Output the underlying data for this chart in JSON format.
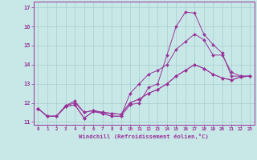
{
  "xlabel": "Windchill (Refroidissement éolien,°C)",
  "background_color": "#c8e8e8",
  "line_color": "#993399",
  "grid_color": "#a8cccc",
  "xlim": [
    -0.5,
    23.5
  ],
  "ylim": [
    10.85,
    17.3
  ],
  "yticks": [
    11,
    12,
    13,
    14,
    15,
    16,
    17
  ],
  "xticks": [
    0,
    1,
    2,
    3,
    4,
    5,
    6,
    7,
    8,
    9,
    10,
    11,
    12,
    13,
    14,
    15,
    16,
    17,
    18,
    19,
    20,
    21,
    22,
    23
  ],
  "line1": [
    11.7,
    11.3,
    11.3,
    11.8,
    11.9,
    11.2,
    11.55,
    11.45,
    11.3,
    11.3,
    11.9,
    12.0,
    12.8,
    13.0,
    14.5,
    16.0,
    16.75,
    16.7,
    15.6,
    15.05,
    14.6,
    13.4,
    13.4,
    13.4
  ],
  "line2": [
    11.7,
    11.3,
    11.3,
    11.8,
    11.9,
    11.2,
    11.55,
    11.45,
    11.3,
    11.3,
    12.5,
    13.0,
    13.5,
    13.7,
    14.0,
    14.8,
    15.2,
    15.6,
    15.3,
    14.5,
    14.5,
    13.6,
    13.4,
    13.4
  ],
  "line3": [
    11.7,
    11.3,
    11.3,
    11.85,
    12.0,
    11.5,
    11.6,
    11.5,
    11.45,
    11.4,
    12.0,
    12.2,
    12.5,
    12.7,
    13.0,
    13.4,
    13.7,
    14.0,
    13.8,
    13.5,
    13.3,
    13.2,
    13.35,
    13.4
  ],
  "line4": [
    11.7,
    11.3,
    11.3,
    11.85,
    12.1,
    11.5,
    11.6,
    11.5,
    11.45,
    11.4,
    12.0,
    12.2,
    12.5,
    12.7,
    13.0,
    13.4,
    13.7,
    14.0,
    13.8,
    13.5,
    13.3,
    13.2,
    13.35,
    13.4
  ]
}
